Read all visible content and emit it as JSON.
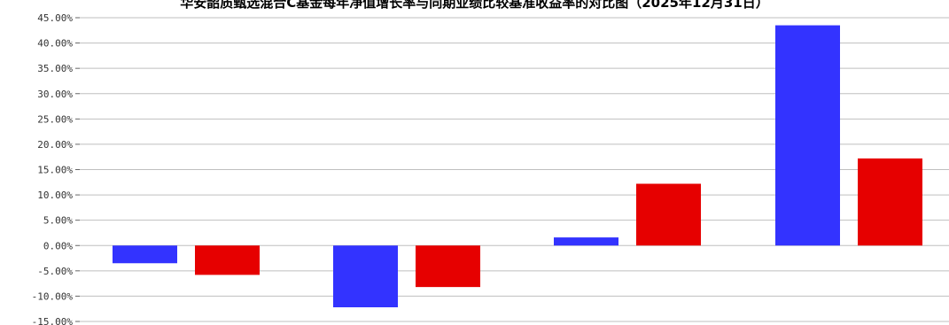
{
  "chart_data": {
    "type": "bar",
    "title": "华安韶质甄选混合C基金每年净值增长率与同期业绩比较基准收益率的对比图（2025年12月31日）",
    "xlabel": "",
    "ylabel": "",
    "ylim": [
      -15,
      45
    ],
    "ytick_step": 5,
    "ytick_labels": [
      "-15.00%",
      "-10.00%",
      "-5.00%",
      "0.00%",
      "5.00%",
      "10.00%",
      "15.00%",
      "20.00%",
      "25.00%",
      "30.00%",
      "35.00%",
      "40.00%",
      "45.00%"
    ],
    "categories": [
      "",
      "",
      "",
      ""
    ],
    "grid": true,
    "series": [
      {
        "values": [
          -3.5,
          -12.2,
          1.6,
          43.5
        ],
        "color": "#3333ff"
      },
      {
        "values": [
          -5.8,
          -8.2,
          12.2,
          17.2
        ],
        "color": "#e60000"
      }
    ]
  }
}
